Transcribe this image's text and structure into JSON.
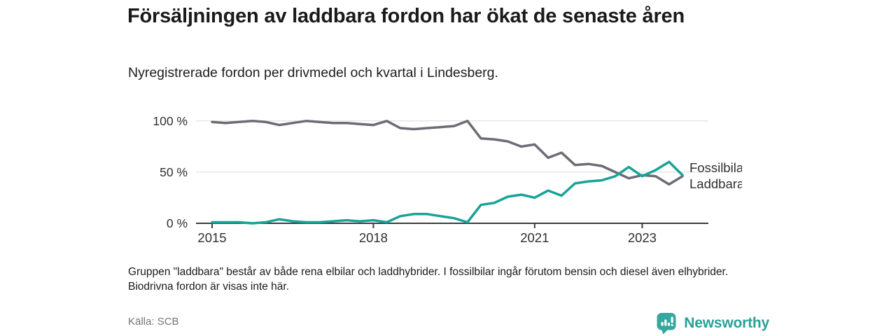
{
  "title": "Försäljningen av laddbara fordon har ökat de senaste åren",
  "subtitle": "Nyregistrerade fordon per drivmedel och kvartal i Lindesberg.",
  "footnote": "Gruppen \"laddbara\" består av både rena elbilar och laddhybrider. I fossilbilar ingår förutom bensin och diesel även elhybrider. Biodrivna fordon är visas inte här.",
  "source": "Källa: SCB",
  "logo": {
    "text": "Newsworthy",
    "icon": "bar-chart-badge-icon",
    "color": "#2aa198"
  },
  "colors": {
    "fossil": "#6c6c75",
    "laddbara": "#17a398",
    "grid": "#dcdcdc",
    "axis": "#3c3c3c",
    "text": "#1a1a1a"
  },
  "chart_data": {
    "type": "line",
    "unit": "%",
    "x_start": "2015 Q1",
    "x_end": "2023 Q4",
    "x_frequency": "quarterly",
    "x_tick_years": [
      2015,
      2018,
      2021,
      2023
    ],
    "y_ticks": [
      0,
      50,
      100
    ],
    "y_tick_labels": [
      "0 %",
      "50 %",
      "100 %"
    ],
    "ylim": [
      0,
      105
    ],
    "grid": "horizontal-only",
    "legend_position": "right-of-line-end",
    "series": [
      {
        "name": "Fossilbilar",
        "color": "#6c6c75",
        "values": [
          99,
          98,
          99,
          100,
          99,
          96,
          98,
          100,
          99,
          98,
          98,
          97,
          96,
          100,
          93,
          92,
          93,
          94,
          95,
          100,
          83,
          82,
          80,
          75,
          77,
          64,
          69,
          57,
          58,
          56,
          50,
          44,
          47,
          46,
          38,
          46
        ]
      },
      {
        "name": "Laddbara",
        "color": "#17a398",
        "values": [
          1,
          1,
          1,
          0,
          1,
          4,
          2,
          1,
          1,
          2,
          3,
          2,
          3,
          1,
          7,
          9,
          9,
          7,
          5,
          1,
          18,
          20,
          26,
          28,
          25,
          32,
          27,
          39,
          41,
          42,
          46,
          55,
          46,
          52,
          60,
          47
        ]
      }
    ]
  }
}
